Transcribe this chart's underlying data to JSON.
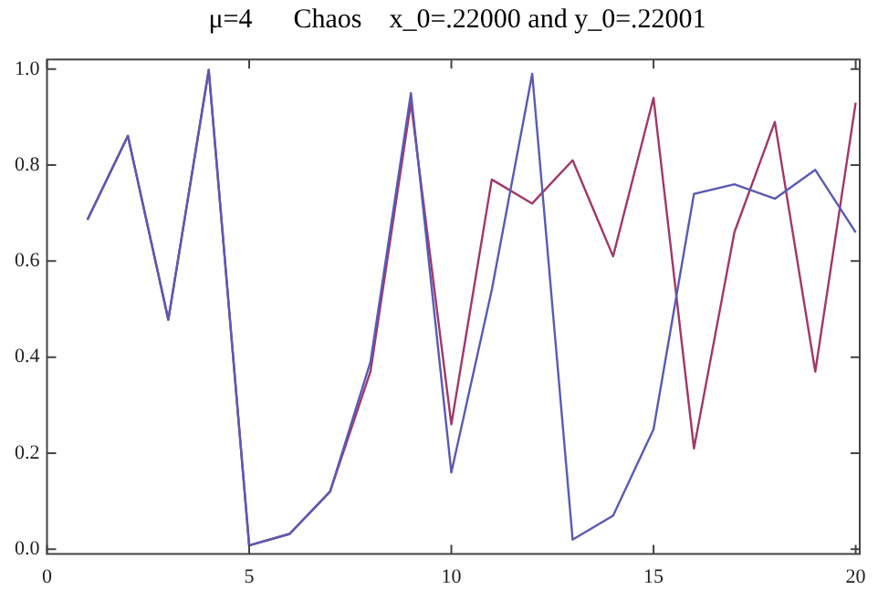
{
  "chart_data": {
    "type": "line",
    "title": "μ=4      Chaos    x_0=.22000 and y_0=.22001",
    "x": [
      1,
      2,
      3,
      4,
      5,
      6,
      7,
      8,
      9,
      10,
      11,
      12,
      13,
      14,
      15,
      16,
      17,
      18,
      19,
      20
    ],
    "series": [
      {
        "color": "#5a5ab4",
        "values": [
          0.686,
          0.861,
          0.478,
          0.998,
          0.008,
          0.032,
          0.12,
          0.39,
          0.95,
          0.16,
          0.54,
          0.99,
          0.02,
          0.07,
          0.25,
          0.74,
          0.76,
          0.73,
          0.79,
          0.66
        ]
      },
      {
        "color": "#a03868",
        "values": [
          0.686,
          0.861,
          0.478,
          0.998,
          0.008,
          0.032,
          0.12,
          0.37,
          0.93,
          0.26,
          0.77,
          0.72,
          0.81,
          0.61,
          0.94,
          0.21,
          0.66,
          0.89,
          0.37,
          0.93
        ]
      }
    ],
    "xlim": [
      0,
      20.1
    ],
    "xticks": [
      0,
      5,
      10,
      15,
      20
    ],
    "ylim": [
      -0.01,
      1.02
    ],
    "yticks": [
      {
        "value": 0,
        "label": "0.0"
      },
      {
        "value": 0.2,
        "label": "0.2"
      },
      {
        "value": 0.4,
        "label": "0.4"
      },
      {
        "value": 0.6,
        "label": "0.6"
      },
      {
        "value": 0.8,
        "label": "0.8"
      },
      {
        "value": 1,
        "label": "1.0"
      }
    ],
    "grid": false,
    "legend": false
  }
}
